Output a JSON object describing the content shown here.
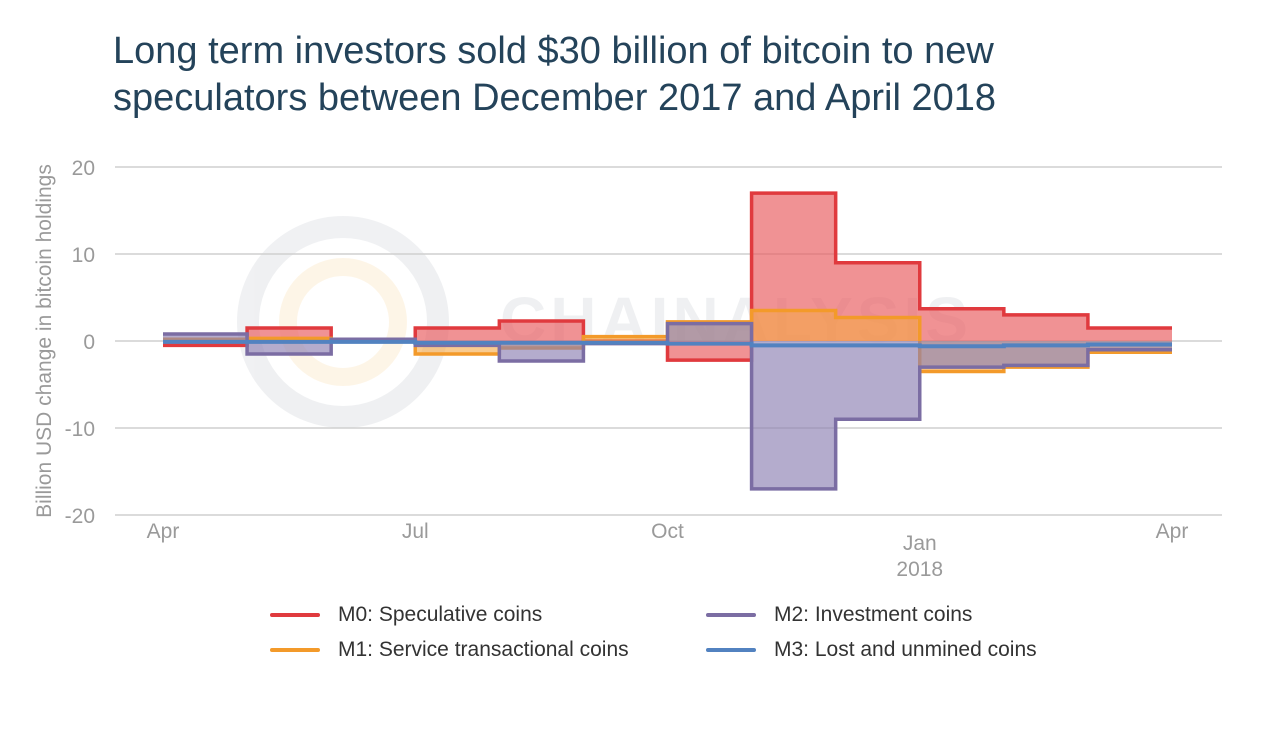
{
  "title": {
    "line1": "Long term investors sold $30 billion of bitcoin to new",
    "line2": "speculators between December 2017 and April 2018"
  },
  "watermark": "CHAINALYSIS",
  "chart_data": {
    "type": "area",
    "ylabel": "Billion USD change in bitcoin holdings",
    "xlabel": "",
    "ylim": [
      -20,
      20
    ],
    "yticks": [
      20,
      10,
      0,
      -10,
      -20
    ],
    "xticks": [
      {
        "label": "Apr",
        "sub": "",
        "month": 0
      },
      {
        "label": "Jul",
        "sub": "",
        "month": 3
      },
      {
        "label": "Oct",
        "sub": "",
        "month": 6
      },
      {
        "label": "Jan",
        "sub": "2018",
        "month": 9
      },
      {
        "label": "Apr",
        "sub": "",
        "month": 12
      }
    ],
    "period_starts": [
      "2017-04",
      "2017-05",
      "2017-06",
      "2017-07",
      "2017-08",
      "2017-09",
      "2017-10",
      "2017-11",
      "2017-12",
      "2018-01",
      "2018-02",
      "2018-03"
    ],
    "grid": true,
    "legend_position": "bottom",
    "series": [
      {
        "name": "M0: Speculative coins",
        "color": "#e03a3e",
        "fill": "rgba(232,88,90,0.65)",
        "values": [
          -0.5,
          1.5,
          0.2,
          1.5,
          2.3,
          0.0,
          -2.2,
          17.0,
          9.0,
          3.7,
          3.0,
          1.5
        ]
      },
      {
        "name": "M1: Service transactional coins",
        "color": "#f39a2a",
        "fill": "rgba(245,168,70,0.6)",
        "values": [
          0.2,
          0.3,
          0.2,
          -1.5,
          -0.8,
          0.5,
          2.2,
          3.5,
          2.7,
          -3.5,
          -3.0,
          -1.3
        ]
      },
      {
        "name": "M2: Investment coins",
        "color": "#7b6da3",
        "fill": "rgba(140,128,178,0.65)",
        "values": [
          0.8,
          -1.5,
          0.2,
          -0.5,
          -2.3,
          -0.3,
          2.0,
          -17.0,
          -9.0,
          -3.0,
          -2.8,
          -1.0
        ]
      },
      {
        "name": "M3: Lost and unmined coins",
        "color": "#5282c0",
        "fill": "none",
        "values": [
          -0.1,
          -0.1,
          -0.1,
          -0.2,
          -0.2,
          -0.2,
          -0.3,
          -0.5,
          -0.5,
          -0.6,
          -0.5,
          -0.4
        ]
      }
    ]
  }
}
